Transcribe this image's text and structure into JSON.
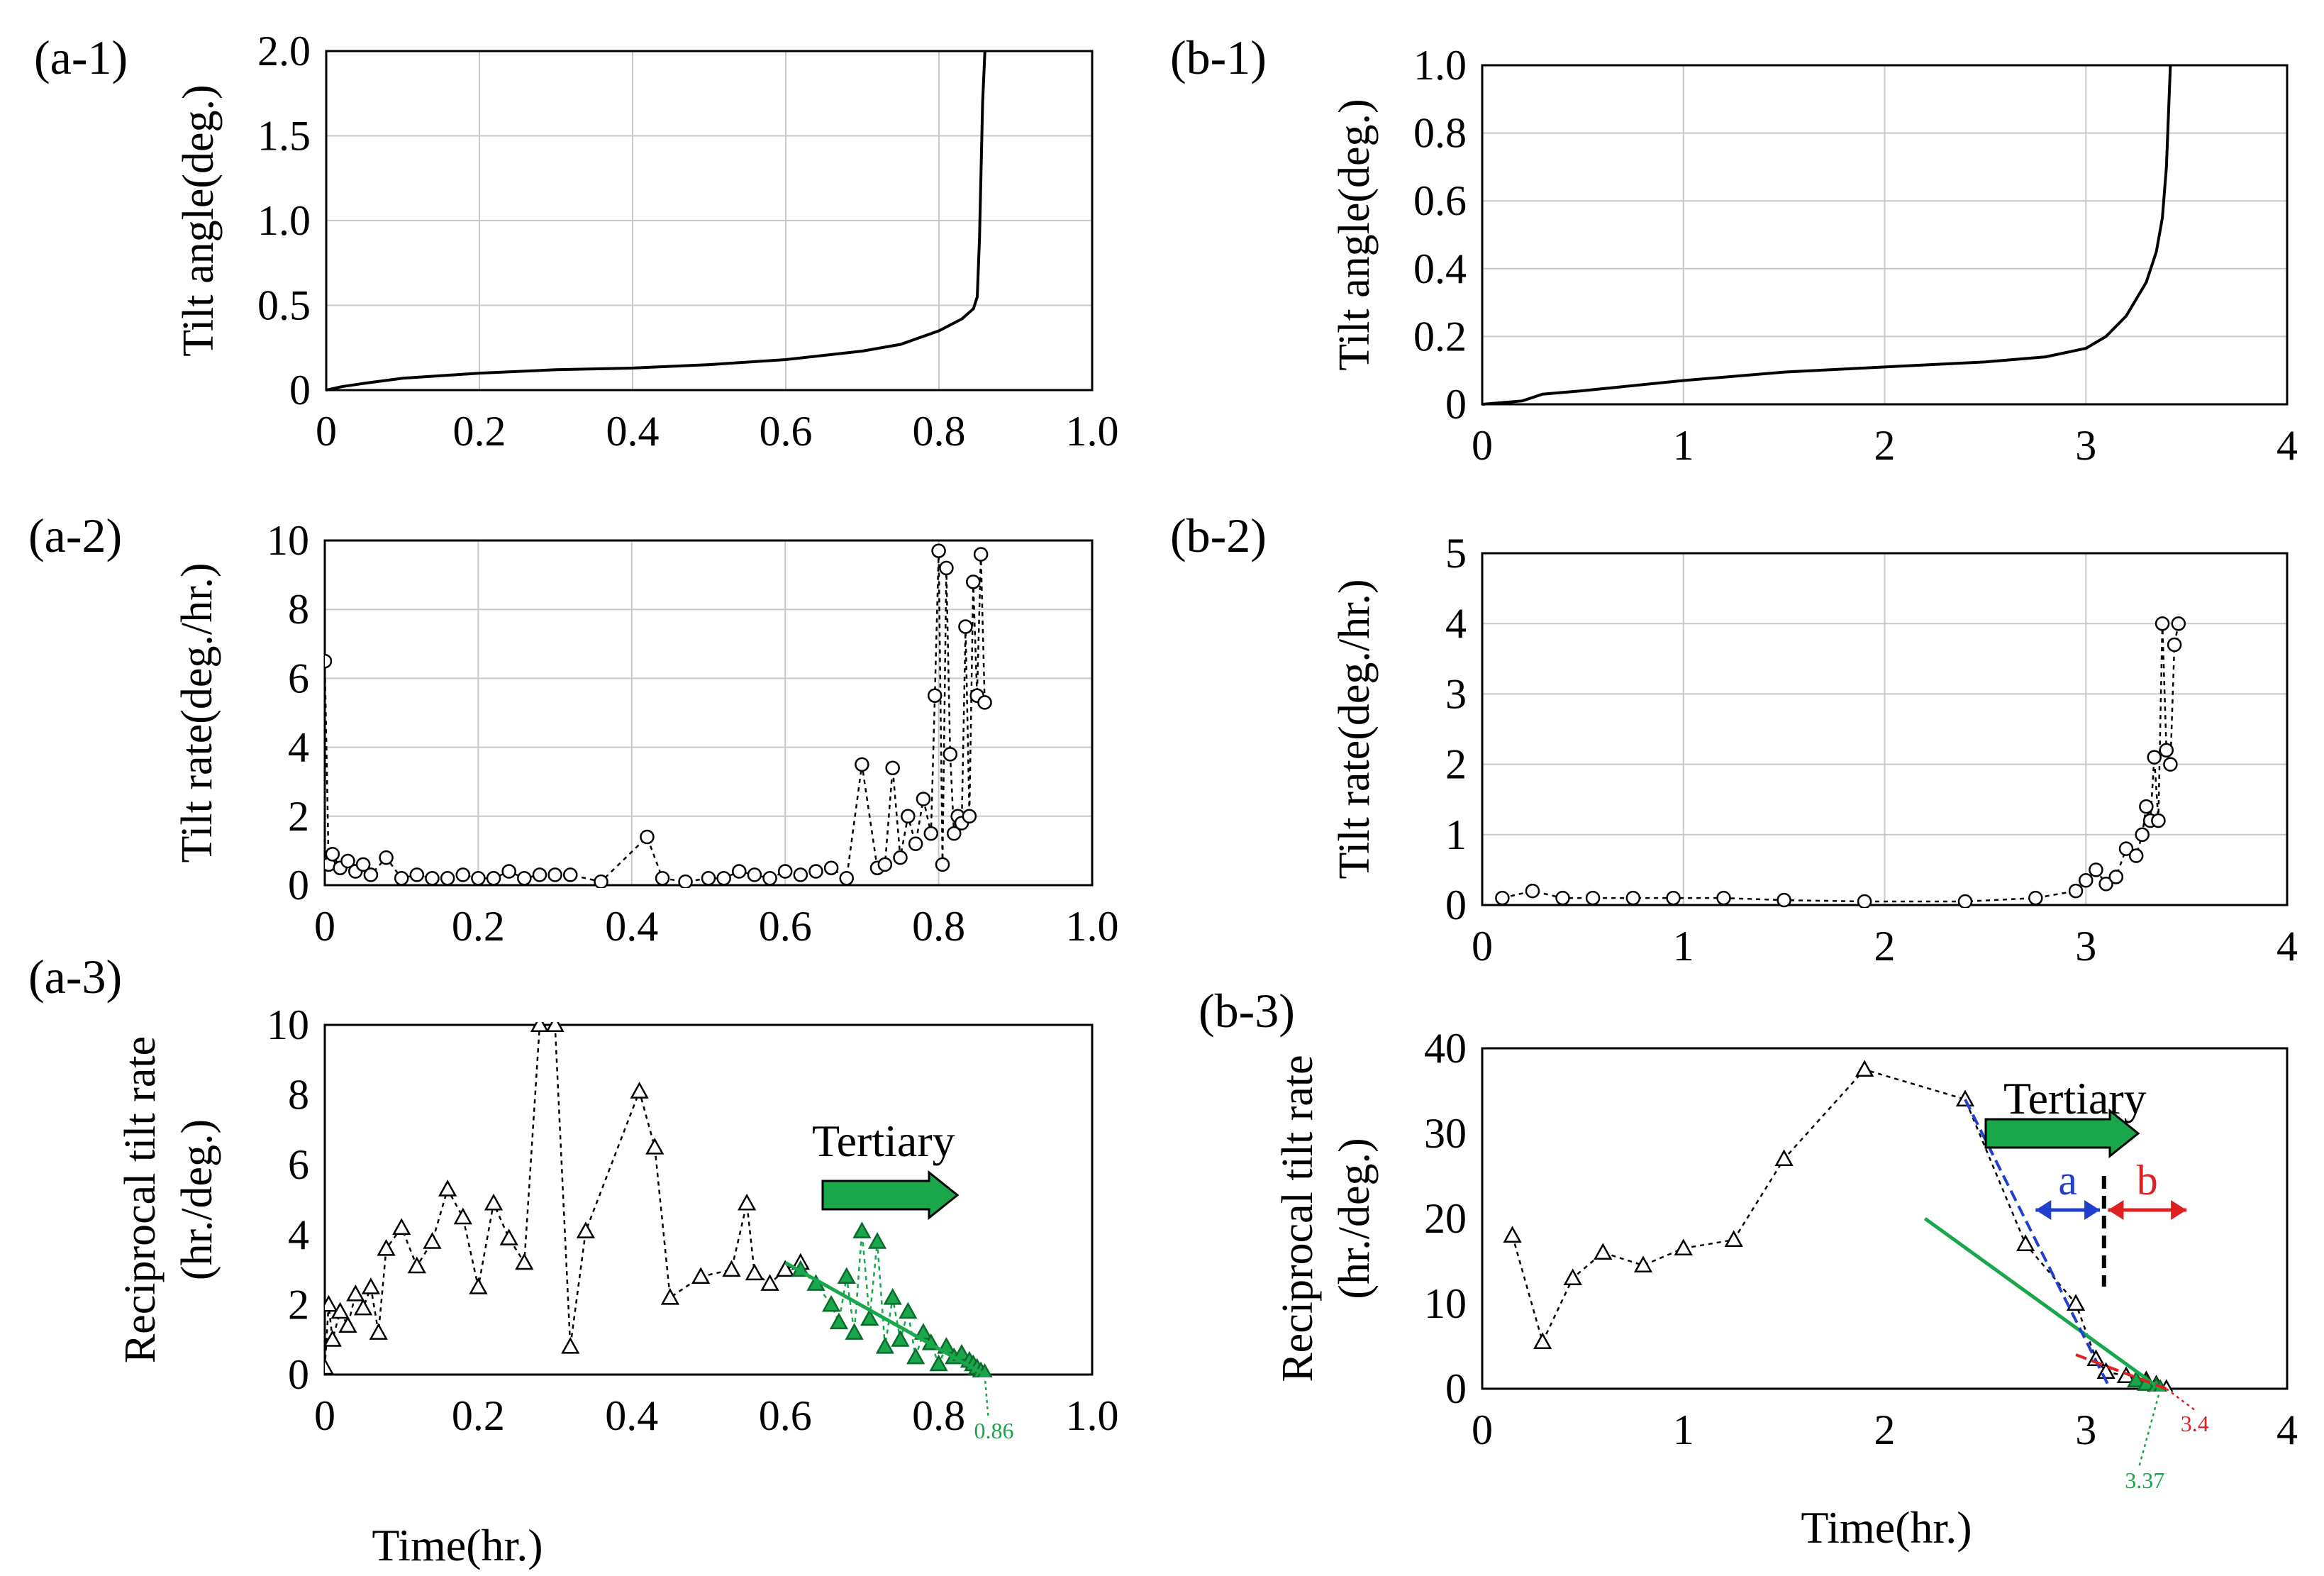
{
  "figure": {
    "xlabel_left": "Time(hr.)",
    "xlabel_right": "Time(hr.)"
  },
  "chart_data": [
    {
      "id": "a1",
      "panel_label": "(a-1)",
      "type": "line",
      "ylabel": "Tilt angle(deg.)",
      "xlabel": "",
      "xlim": [
        0,
        1.0
      ],
      "ylim": [
        0,
        2.0
      ],
      "xticks": [
        0,
        0.2,
        0.4,
        0.6,
        0.8,
        1.0
      ],
      "xtick_labels": [
        "0",
        "0.2",
        "0.4",
        "0.6",
        "0.8",
        "1.0"
      ],
      "yticks": [
        0,
        0.5,
        1.0,
        1.5,
        2.0
      ],
      "ytick_labels": [
        "0",
        "0.5",
        "1.0",
        "1.5",
        "2.0"
      ],
      "grid": true,
      "series": [
        {
          "name": "tilt angle",
          "style": "solid",
          "color": "#000000",
          "x": [
            0,
            0.02,
            0.05,
            0.1,
            0.2,
            0.3,
            0.4,
            0.5,
            0.6,
            0.7,
            0.75,
            0.8,
            0.83,
            0.845,
            0.85,
            0.853,
            0.855,
            0.857,
            0.86
          ],
          "y": [
            0,
            0.02,
            0.04,
            0.07,
            0.1,
            0.12,
            0.13,
            0.15,
            0.18,
            0.23,
            0.27,
            0.35,
            0.42,
            0.48,
            0.55,
            0.9,
            1.3,
            1.7,
            2.0
          ]
        }
      ]
    },
    {
      "id": "b1",
      "panel_label": "(b-1)",
      "type": "line",
      "ylabel": "Tilt angle(deg.)",
      "xlabel": "",
      "xlim": [
        0,
        4
      ],
      "ylim": [
        0,
        1.0
      ],
      "xticks": [
        0,
        1,
        2,
        3,
        4
      ],
      "xtick_labels": [
        "0",
        "1",
        "2",
        "3",
        "4"
      ],
      "yticks": [
        0,
        0.2,
        0.4,
        0.6,
        0.8,
        1.0
      ],
      "ytick_labels": [
        "0",
        "0.2",
        "0.4",
        "0.6",
        "0.8",
        "1.0"
      ],
      "grid": true,
      "series": [
        {
          "name": "tilt angle",
          "style": "solid",
          "color": "#000000",
          "x": [
            0,
            0.2,
            0.3,
            0.5,
            1.0,
            1.5,
            2.0,
            2.5,
            2.8,
            3.0,
            3.1,
            3.2,
            3.3,
            3.35,
            3.38,
            3.4,
            3.41,
            3.42
          ],
          "y": [
            0,
            0.01,
            0.03,
            0.04,
            0.07,
            0.095,
            0.11,
            0.125,
            0.14,
            0.165,
            0.2,
            0.26,
            0.36,
            0.45,
            0.55,
            0.7,
            0.85,
            1.0
          ]
        }
      ]
    },
    {
      "id": "a2",
      "panel_label": "(a-2)",
      "type": "scatter",
      "ylabel": "Tilt rate(deg./hr.)",
      "xlabel": "",
      "xlim": [
        0,
        1.0
      ],
      "ylim": [
        0,
        10
      ],
      "xticks": [
        0,
        0.2,
        0.4,
        0.6,
        0.8,
        1.0
      ],
      "xtick_labels": [
        "0",
        "0.2",
        "0.4",
        "0.6",
        "0.8",
        "1.0"
      ],
      "yticks": [
        0,
        2,
        4,
        6,
        8,
        10
      ],
      "ytick_labels": [
        "0",
        "2",
        "4",
        "6",
        "8",
        "10"
      ],
      "grid": true,
      "series": [
        {
          "name": "tilt rate",
          "style": "dotted",
          "marker": "circle",
          "color": "#000000",
          "x": [
            0,
            0.005,
            0.01,
            0.02,
            0.03,
            0.04,
            0.05,
            0.06,
            0.08,
            0.1,
            0.12,
            0.14,
            0.16,
            0.18,
            0.2,
            0.22,
            0.24,
            0.26,
            0.28,
            0.3,
            0.32,
            0.36,
            0.42,
            0.44,
            0.47,
            0.5,
            0.52,
            0.54,
            0.56,
            0.58,
            0.6,
            0.62,
            0.64,
            0.66,
            0.68,
            0.7,
            0.72,
            0.73,
            0.74,
            0.75,
            0.76,
            0.77,
            0.78,
            0.79,
            0.795,
            0.8,
            0.805,
            0.81,
            0.815,
            0.82,
            0.825,
            0.83,
            0.835,
            0.84,
            0.845,
            0.85,
            0.855,
            0.86
          ],
          "y": [
            6.5,
            0.6,
            0.9,
            0.5,
            0.7,
            0.4,
            0.6,
            0.3,
            0.8,
            0.2,
            0.3,
            0.2,
            0.2,
            0.3,
            0.2,
            0.2,
            0.4,
            0.2,
            0.3,
            0.3,
            0.3,
            0.1,
            1.4,
            0.2,
            0.1,
            0.2,
            0.2,
            0.4,
            0.3,
            0.2,
            0.4,
            0.3,
            0.4,
            0.5,
            0.2,
            3.5,
            0.5,
            0.6,
            3.4,
            0.8,
            2.0,
            1.2,
            2.5,
            1.5,
            5.5,
            9.7,
            0.6,
            9.2,
            3.8,
            1.5,
            2.0,
            1.8,
            7.5,
            2.0,
            8.8,
            5.5,
            9.6,
            5.3
          ]
        }
      ]
    },
    {
      "id": "b2",
      "panel_label": "(b-2)",
      "type": "scatter",
      "ylabel": "Tilt rate(deg./hr.)",
      "xlabel": "",
      "xlim": [
        0,
        4
      ],
      "ylim": [
        0,
        5
      ],
      "xticks": [
        0,
        1,
        2,
        3,
        4
      ],
      "xtick_labels": [
        "0",
        "1",
        "2",
        "3",
        "4"
      ],
      "yticks": [
        0,
        1,
        2,
        3,
        4,
        5
      ],
      "ytick_labels": [
        "0",
        "1",
        "2",
        "3",
        "4",
        "5"
      ],
      "grid": true,
      "series": [
        {
          "name": "tilt rate",
          "style": "dotted",
          "marker": "circle",
          "color": "#000000",
          "x": [
            0.1,
            0.25,
            0.4,
            0.55,
            0.75,
            0.95,
            1.2,
            1.5,
            1.9,
            2.4,
            2.75,
            2.95,
            3.0,
            3.05,
            3.1,
            3.15,
            3.2,
            3.25,
            3.28,
            3.3,
            3.32,
            3.34,
            3.36,
            3.38,
            3.4,
            3.42,
            3.44,
            3.46
          ],
          "y": [
            0.1,
            0.2,
            0.1,
            0.1,
            0.1,
            0.1,
            0.1,
            0.07,
            0.05,
            0.05,
            0.1,
            0.2,
            0.35,
            0.5,
            0.3,
            0.4,
            0.8,
            0.7,
            1.0,
            1.4,
            1.2,
            2.1,
            1.2,
            4.0,
            2.2,
            2.0,
            3.7,
            4.0
          ]
        }
      ]
    },
    {
      "id": "a3",
      "panel_label": "(a-3)",
      "type": "scatter",
      "ylabel": "Reciprocal  tilt rate",
      "ylabel2": "(hr./deg.)",
      "xlabel": "",
      "xlim": [
        0,
        1.0
      ],
      "ylim": [
        0,
        10
      ],
      "xticks": [
        0,
        0.2,
        0.4,
        0.6,
        0.8,
        1.0
      ],
      "xtick_labels": [
        "0",
        "0.2",
        "0.4",
        "0.6",
        "0.8",
        "1.0"
      ],
      "yticks": [
        0,
        2,
        4,
        6,
        8,
        10
      ],
      "ytick_labels": [
        "0",
        "2",
        "4",
        "6",
        "8",
        "10"
      ],
      "grid": false,
      "series": [
        {
          "name": "reciprocal tilt rate",
          "style": "dotted",
          "marker": "triangle",
          "color": "#000000",
          "x": [
            0,
            0.005,
            0.01,
            0.02,
            0.03,
            0.04,
            0.05,
            0.06,
            0.07,
            0.08,
            0.1,
            0.12,
            0.14,
            0.16,
            0.18,
            0.2,
            0.22,
            0.24,
            0.26,
            0.28,
            0.3,
            0.32,
            0.34,
            0.41,
            0.43,
            0.45,
            0.49,
            0.53,
            0.55,
            0.56,
            0.58,
            0.6,
            0.62
          ],
          "y": [
            0.2,
            2.0,
            1.0,
            1.8,
            1.4,
            2.3,
            1.9,
            2.5,
            1.2,
            3.6,
            4.2,
            3.1,
            3.8,
            5.3,
            4.5,
            2.5,
            4.9,
            3.9,
            3.2,
            10,
            10,
            0.8,
            4.1,
            8.1,
            6.5,
            2.2,
            2.8,
            3.0,
            4.9,
            2.9,
            2.6,
            3.0,
            3.2
          ]
        },
        {
          "name": "tertiary points",
          "style": "dotted",
          "marker": "triangle-filled",
          "color": "#1aa64a",
          "x": [
            0.62,
            0.64,
            0.66,
            0.67,
            0.68,
            0.69,
            0.7,
            0.71,
            0.72,
            0.73,
            0.74,
            0.75,
            0.76,
            0.77,
            0.78,
            0.79,
            0.8,
            0.81,
            0.82,
            0.83,
            0.84,
            0.845,
            0.85,
            0.855,
            0.86
          ],
          "y": [
            3.0,
            2.6,
            2.0,
            1.5,
            2.8,
            1.2,
            4.1,
            1.6,
            3.8,
            0.8,
            2.2,
            1.0,
            1.8,
            0.5,
            1.2,
            0.9,
            0.3,
            0.8,
            0.5,
            0.6,
            0.4,
            0.3,
            0.2,
            0.1,
            0.05
          ]
        },
        {
          "name": "fit line",
          "style": "solid",
          "color": "#1aa64a",
          "x": [
            0.6,
            0.86
          ],
          "y": [
            3.2,
            0
          ]
        }
      ],
      "annotations": [
        {
          "type": "arrow",
          "label": "Tertiary",
          "color": "#1aa64a"
        },
        {
          "type": "label",
          "text": "0.86",
          "color": "#1aa64a",
          "x": 0.86,
          "y": 0
        }
      ]
    },
    {
      "id": "b3",
      "panel_label": "(b-3)",
      "type": "scatter",
      "ylabel": "Reciprocal  tilt rate",
      "ylabel2": "(hr./deg.)",
      "xlabel": "",
      "xlim": [
        0,
        4
      ],
      "ylim": [
        0,
        40
      ],
      "xticks": [
        0,
        1,
        2,
        3,
        4
      ],
      "xtick_labels": [
        "0",
        "1",
        "2",
        "3",
        "4"
      ],
      "yticks": [
        0,
        10,
        20,
        30,
        40
      ],
      "ytick_labels": [
        "0",
        "10",
        "20",
        "30",
        "40"
      ],
      "grid": false,
      "series": [
        {
          "name": "reciprocal tilt rate",
          "style": "dotted",
          "marker": "triangle",
          "color": "#000000",
          "x": [
            0.15,
            0.3,
            0.45,
            0.6,
            0.8,
            1.0,
            1.25,
            1.5,
            1.9,
            2.4,
            2.7,
            2.95,
            3.05,
            3.1,
            3.2,
            3.3,
            3.35,
            3.4
          ],
          "y": [
            18,
            5.5,
            13,
            16,
            14.5,
            16.5,
            17.5,
            27,
            37.5,
            34,
            17,
            10,
            3.5,
            2,
            1.5,
            1,
            0.5,
            0
          ]
        },
        {
          "name": "tertiary points",
          "style": "dotted",
          "marker": "triangle-filled",
          "color": "#1aa64a",
          "x": [
            3.25,
            3.3,
            3.35,
            3.37
          ],
          "y": [
            1.0,
            0.6,
            0.3,
            0
          ]
        },
        {
          "name": "fit line green",
          "style": "solid",
          "color": "#1aa64a",
          "x": [
            2.2,
            3.37
          ],
          "y": [
            20,
            0
          ]
        },
        {
          "name": "fit line blue",
          "style": "dashed",
          "color": "#1f3fcc",
          "x": [
            2.4,
            3.12
          ],
          "y": [
            34,
            0
          ]
        },
        {
          "name": "fit line red",
          "style": "dashed",
          "color": "#e02020",
          "x": [
            2.95,
            3.4
          ],
          "y": [
            4,
            0
          ]
        }
      ],
      "annotations": [
        {
          "type": "arrow",
          "label": "Tertiary",
          "color": "#1aa64a"
        },
        {
          "type": "double-arrow",
          "label": "a",
          "color": "#1f3fcc",
          "x": [
            2.75,
            3.07
          ],
          "y": 21
        },
        {
          "type": "double-arrow",
          "label": "b",
          "color": "#e02020",
          "x": [
            3.11,
            3.5
          ],
          "y": 21
        },
        {
          "type": "vline",
          "style": "dashed",
          "color": "#000000",
          "x": 3.09,
          "y": [
            12,
            25
          ]
        },
        {
          "type": "label",
          "text": "3.37",
          "color": "#1aa64a",
          "x": 3.37,
          "y": 0
        },
        {
          "type": "label",
          "text": "3.4",
          "color": "#e02020",
          "x": 3.4,
          "y": 0
        }
      ]
    }
  ]
}
